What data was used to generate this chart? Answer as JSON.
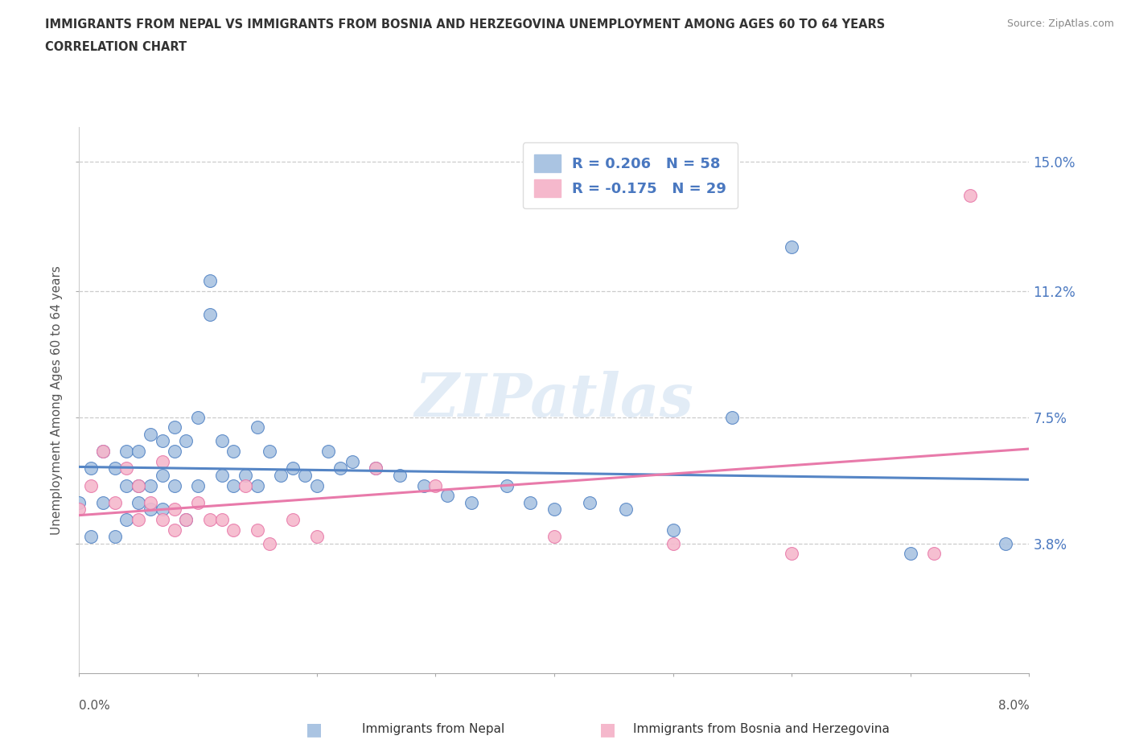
{
  "title_line1": "IMMIGRANTS FROM NEPAL VS IMMIGRANTS FROM BOSNIA AND HERZEGOVINA UNEMPLOYMENT AMONG AGES 60 TO 64 YEARS",
  "title_line2": "CORRELATION CHART",
  "source_text": "Source: ZipAtlas.com",
  "ylabel": "Unemployment Among Ages 60 to 64 years",
  "legend_label1": "Immigrants from Nepal",
  "legend_label2": "Immigrants from Bosnia and Herzegovina",
  "R1": 0.206,
  "N1": 58,
  "R2": -0.175,
  "N2": 29,
  "color1": "#aac4e2",
  "color2": "#f5b8cc",
  "line_color1": "#5585c5",
  "line_color2": "#e87aaa",
  "text_color": "#4a78c0",
  "watermark": "ZIPatlas",
  "xlim": [
    0.0,
    0.08
  ],
  "ylim": [
    0.0,
    0.16
  ],
  "xtick_vals": [
    0.0,
    0.01,
    0.02,
    0.03,
    0.04,
    0.05,
    0.06,
    0.07,
    0.08
  ],
  "ytick_vals": [
    0.038,
    0.075,
    0.112,
    0.15
  ],
  "ytick_labels": [
    "3.8%",
    "7.5%",
    "11.2%",
    "15.0%"
  ],
  "nepal_x": [
    0.0,
    0.001,
    0.001,
    0.002,
    0.002,
    0.003,
    0.003,
    0.004,
    0.004,
    0.004,
    0.005,
    0.005,
    0.005,
    0.006,
    0.006,
    0.006,
    0.007,
    0.007,
    0.007,
    0.008,
    0.008,
    0.008,
    0.009,
    0.009,
    0.01,
    0.01,
    0.011,
    0.011,
    0.012,
    0.012,
    0.013,
    0.013,
    0.014,
    0.015,
    0.015,
    0.016,
    0.017,
    0.018,
    0.019,
    0.02,
    0.021,
    0.022,
    0.023,
    0.025,
    0.027,
    0.029,
    0.031,
    0.033,
    0.036,
    0.038,
    0.04,
    0.043,
    0.046,
    0.05,
    0.055,
    0.06,
    0.07,
    0.078
  ],
  "nepal_y": [
    0.05,
    0.04,
    0.06,
    0.05,
    0.065,
    0.04,
    0.06,
    0.055,
    0.045,
    0.065,
    0.055,
    0.065,
    0.05,
    0.055,
    0.048,
    0.07,
    0.048,
    0.058,
    0.068,
    0.072,
    0.055,
    0.065,
    0.068,
    0.045,
    0.075,
    0.055,
    0.115,
    0.105,
    0.058,
    0.068,
    0.055,
    0.065,
    0.058,
    0.072,
    0.055,
    0.065,
    0.058,
    0.06,
    0.058,
    0.055,
    0.065,
    0.06,
    0.062,
    0.06,
    0.058,
    0.055,
    0.052,
    0.05,
    0.055,
    0.05,
    0.048,
    0.05,
    0.048,
    0.042,
    0.075,
    0.125,
    0.035,
    0.038
  ],
  "bosnia_x": [
    0.0,
    0.001,
    0.002,
    0.003,
    0.004,
    0.005,
    0.005,
    0.006,
    0.007,
    0.007,
    0.008,
    0.008,
    0.009,
    0.01,
    0.011,
    0.012,
    0.013,
    0.014,
    0.015,
    0.016,
    0.018,
    0.02,
    0.025,
    0.03,
    0.04,
    0.05,
    0.06,
    0.072,
    0.075
  ],
  "bosnia_y": [
    0.048,
    0.055,
    0.065,
    0.05,
    0.06,
    0.055,
    0.045,
    0.05,
    0.062,
    0.045,
    0.048,
    0.042,
    0.045,
    0.05,
    0.045,
    0.045,
    0.042,
    0.055,
    0.042,
    0.038,
    0.045,
    0.04,
    0.06,
    0.055,
    0.04,
    0.038,
    0.035,
    0.035,
    0.14
  ]
}
